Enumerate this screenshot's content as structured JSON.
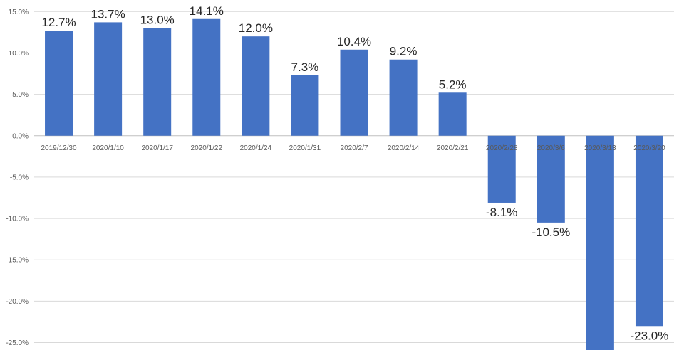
{
  "chart_data": {
    "type": "bar",
    "title": "",
    "xlabel": "",
    "ylabel": "",
    "categories": [
      "2019/12/30",
      "2020/1/10",
      "2020/1/17",
      "2020/1/22",
      "2020/1/24",
      "2020/1/31",
      "2020/2/7",
      "2020/2/14",
      "2020/2/21",
      "2020/2/28",
      "2020/3/6",
      "2020/3/13",
      "2020/3/20"
    ],
    "values": [
      12.7,
      13.7,
      13.0,
      14.1,
      12.0,
      7.3,
      10.4,
      9.2,
      5.2,
      -8.1,
      -10.5,
      -25.9,
      -23.0
    ],
    "data_labels": [
      "12.7%",
      "13.7%",
      "13.0%",
      "14.1%",
      "12.0%",
      "7.3%",
      "10.4%",
      "9.2%",
      "5.2%",
      "-8.1%",
      "-10.5%",
      "",
      "-23.0%"
    ],
    "yticks": [
      15,
      10,
      5,
      0,
      -5,
      -10,
      -15,
      -20,
      -25
    ],
    "ytick_labels": [
      "15.0%",
      "10.0%",
      "5.0%",
      "0.0%",
      "-5.0%",
      "-10.0%",
      "-15.0%",
      "-20.0%",
      "-25.0%"
    ],
    "ylim": [
      -25.9,
      16.4
    ],
    "grid": true,
    "legend": "none",
    "bar_color": "#4472c4"
  }
}
